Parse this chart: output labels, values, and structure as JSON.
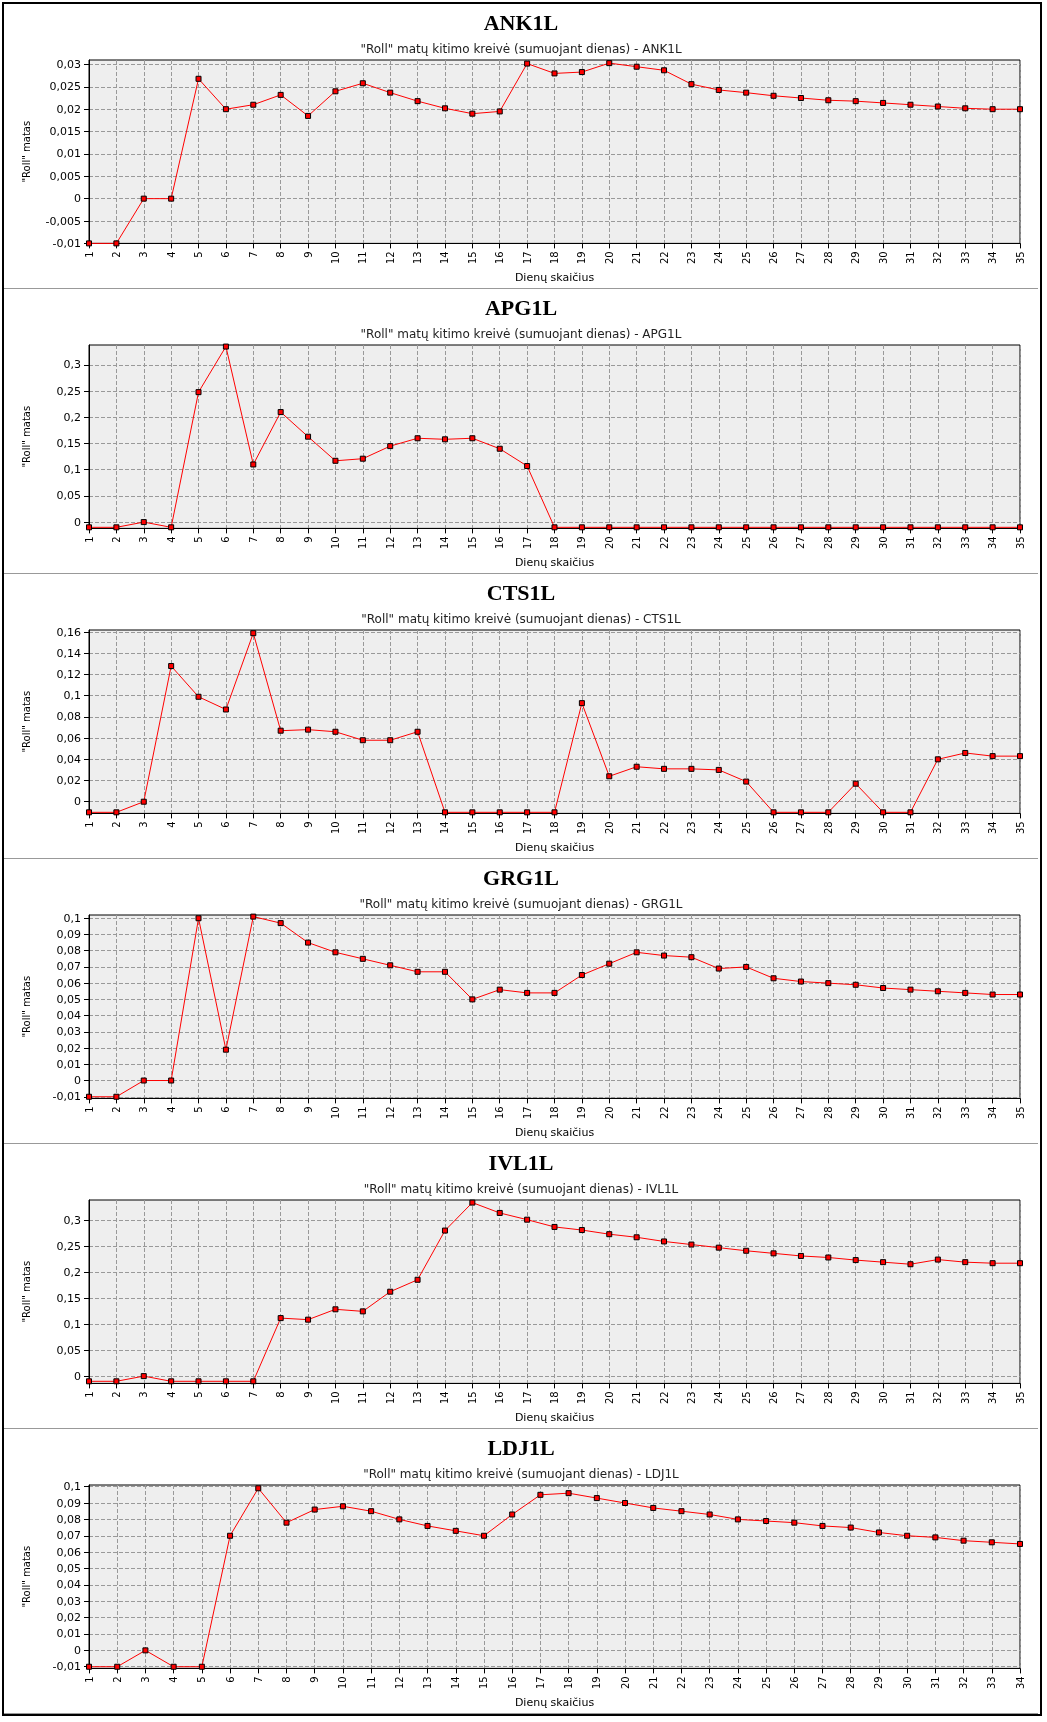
{
  "chart_data": [
    {
      "type": "line",
      "title": "ANK1L",
      "subtitle": "\"Roll\" matų kitimo kreivė (sumuojant dienas) - ANK1L",
      "xlabel": "Dienų skaičius",
      "ylabel": "\"Roll\" matas",
      "grid": true,
      "marker": "square",
      "line_style": "solid",
      "categories": [
        "1",
        "2",
        "3",
        "4",
        "5",
        "6",
        "7",
        "8",
        "9",
        "10",
        "11",
        "12",
        "13",
        "14",
        "15",
        "16",
        "17",
        "18",
        "19",
        "20",
        "21",
        "22",
        "23",
        "24",
        "25",
        "26",
        "27",
        "28",
        "29",
        "30",
        "31",
        "32",
        "33",
        "34",
        "35"
      ],
      "ylim": [
        -0.01,
        0.031
      ],
      "yticks": [
        {
          "value": -0.01,
          "label": "-0,01"
        },
        {
          "value": -0.005,
          "label": "-0,005"
        },
        {
          "value": 0,
          "label": "0"
        },
        {
          "value": 0.005,
          "label": "0,005"
        },
        {
          "value": 0.01,
          "label": "0,01"
        },
        {
          "value": 0.015,
          "label": "0,015"
        },
        {
          "value": 0.02,
          "label": "0,02"
        },
        {
          "value": 0.025,
          "label": "0,025"
        },
        {
          "value": 0.03,
          "label": "0,03"
        }
      ],
      "series": [
        {
          "color": "#ff0000",
          "values": [
            -0.01,
            -0.01,
            0,
            0,
            0.0268,
            0.02,
            0.021,
            0.0232,
            0.0185,
            0.024,
            0.0258,
            0.0237,
            0.0218,
            0.0202,
            0.019,
            0.0195,
            0.0302,
            0.028,
            0.0283,
            0.0303,
            0.0295,
            0.0287,
            0.0256,
            0.0243,
            0.0237,
            0.023,
            0.0225,
            0.022,
            0.0218,
            0.0214,
            0.021,
            0.0206,
            0.0202,
            0.02,
            0.02
          ]
        }
      ]
    },
    {
      "type": "line",
      "title": "APG1L",
      "subtitle": "\"Roll\" matų kitimo kreivė (sumuojant dienas) - APG1L",
      "xlabel": "Dienų skaičius",
      "ylabel": "\"Roll\" matas",
      "grid": true,
      "marker": "square",
      "line_style": "solid",
      "categories": [
        "1",
        "2",
        "3",
        "4",
        "5",
        "6",
        "7",
        "8",
        "9",
        "10",
        "11",
        "12",
        "13",
        "14",
        "15",
        "16",
        "17",
        "18",
        "19",
        "20",
        "21",
        "22",
        "23",
        "24",
        "25",
        "26",
        "27",
        "28",
        "29",
        "30",
        "31",
        "32",
        "33",
        "34",
        "35"
      ],
      "ylim": [
        -0.012,
        0.338
      ],
      "yticks": [
        {
          "value": 0,
          "label": "0"
        },
        {
          "value": 0.05,
          "label": "0,05"
        },
        {
          "value": 0.1,
          "label": "0,1"
        },
        {
          "value": 0.15,
          "label": "0,15"
        },
        {
          "value": 0.2,
          "label": "0,2"
        },
        {
          "value": 0.25,
          "label": "0,25"
        },
        {
          "value": 0.3,
          "label": "0,3"
        }
      ],
      "series": [
        {
          "color": "#ff0000",
          "values": [
            -0.01,
            -0.01,
            0,
            -0.01,
            0.248,
            0.335,
            0.11,
            0.21,
            0.163,
            0.117,
            0.121,
            0.145,
            0.16,
            0.158,
            0.16,
            0.14,
            0.107,
            -0.01,
            -0.01,
            -0.01,
            -0.01,
            -0.01,
            -0.01,
            -0.01,
            -0.01,
            -0.01,
            -0.01,
            -0.01,
            -0.01,
            -0.01,
            -0.01,
            -0.01,
            -0.01,
            -0.01,
            -0.01
          ]
        }
      ]
    },
    {
      "type": "line",
      "title": "CTS1L",
      "subtitle": "\"Roll\" matų kitimo kreivė (sumuojant dienas) - CTS1L",
      "xlabel": "Dienų skaičius",
      "ylabel": "\"Roll\" matas",
      "grid": true,
      "marker": "square",
      "line_style": "solid",
      "categories": [
        "1",
        "2",
        "3",
        "4",
        "5",
        "6",
        "7",
        "8",
        "9",
        "10",
        "11",
        "12",
        "13",
        "14",
        "15",
        "16",
        "17",
        "18",
        "19",
        "20",
        "21",
        "22",
        "23",
        "24",
        "25",
        "26",
        "27",
        "28",
        "29",
        "30",
        "31",
        "32",
        "33",
        "34",
        "35"
      ],
      "ylim": [
        -0.011,
        0.162
      ],
      "yticks": [
        {
          "value": 0,
          "label": "0"
        },
        {
          "value": 0.02,
          "label": "0,02"
        },
        {
          "value": 0.04,
          "label": "0,04"
        },
        {
          "value": 0.06,
          "label": "0,06"
        },
        {
          "value": 0.08,
          "label": "0,08"
        },
        {
          "value": 0.1,
          "label": "0,1"
        },
        {
          "value": 0.12,
          "label": "0,12"
        },
        {
          "value": 0.14,
          "label": "0,14"
        },
        {
          "value": 0.16,
          "label": "0,16"
        }
      ],
      "series": [
        {
          "color": "#ff0000",
          "values": [
            -0.01,
            -0.01,
            0,
            0.128,
            0.099,
            0.087,
            0.159,
            0.067,
            0.068,
            0.066,
            0.058,
            0.058,
            0.066,
            -0.01,
            -0.01,
            -0.01,
            -0.01,
            -0.01,
            0.093,
            0.024,
            0.033,
            0.031,
            0.031,
            0.03,
            0.019,
            -0.01,
            -0.01,
            -0.01,
            0.017,
            -0.01,
            -0.01,
            0.04,
            0.046,
            0.043,
            0.043
          ]
        }
      ]
    },
    {
      "type": "line",
      "title": "GRG1L",
      "subtitle": "\"Roll\" matų kitimo kreivė (sumuojant dienas) - GRG1L",
      "xlabel": "Dienų skaičius",
      "ylabel": "\"Roll\" matas",
      "grid": true,
      "marker": "square",
      "line_style": "solid",
      "categories": [
        "1",
        "2",
        "3",
        "4",
        "5",
        "6",
        "7",
        "8",
        "9",
        "10",
        "11",
        "12",
        "13",
        "14",
        "15",
        "16",
        "17",
        "18",
        "19",
        "20",
        "21",
        "22",
        "23",
        "24",
        "25",
        "26",
        "27",
        "28",
        "29",
        "30",
        "31",
        "32",
        "33",
        "34",
        "35"
      ],
      "ylim": [
        -0.011,
        0.102
      ],
      "yticks": [
        {
          "value": -0.01,
          "label": "-0,01"
        },
        {
          "value": 0,
          "label": "0"
        },
        {
          "value": 0.01,
          "label": "0,01"
        },
        {
          "value": 0.02,
          "label": "0,02"
        },
        {
          "value": 0.03,
          "label": "0,03"
        },
        {
          "value": 0.04,
          "label": "0,04"
        },
        {
          "value": 0.05,
          "label": "0,05"
        },
        {
          "value": 0.06,
          "label": "0,06"
        },
        {
          "value": 0.07,
          "label": "0,07"
        },
        {
          "value": 0.08,
          "label": "0,08"
        },
        {
          "value": 0.09,
          "label": "0,09"
        },
        {
          "value": 0.1,
          "label": "0,1"
        }
      ],
      "series": [
        {
          "color": "#ff0000",
          "values": [
            -0.01,
            -0.01,
            0,
            0,
            0.1,
            0.019,
            0.101,
            0.097,
            0.085,
            0.079,
            0.075,
            0.071,
            0.067,
            0.067,
            0.05,
            0.056,
            0.054,
            0.054,
            0.065,
            0.072,
            0.079,
            0.077,
            0.076,
            0.069,
            0.07,
            0.063,
            0.061,
            0.06,
            0.059,
            0.057,
            0.056,
            0.055,
            0.054,
            0.053,
            0.053
          ]
        }
      ]
    },
    {
      "type": "line",
      "title": "IVL1L",
      "subtitle": "\"Roll\" matų kitimo kreivė (sumuojant dienas) - IVL1L",
      "xlabel": "Dienų skaičius",
      "ylabel": "\"Roll\" matas",
      "grid": true,
      "marker": "square",
      "line_style": "solid",
      "categories": [
        "1",
        "2",
        "3",
        "4",
        "5",
        "6",
        "7",
        "8",
        "9",
        "10",
        "11",
        "12",
        "13",
        "14",
        "15",
        "16",
        "17",
        "18",
        "19",
        "20",
        "21",
        "22",
        "23",
        "24",
        "25",
        "26",
        "27",
        "28",
        "29",
        "30",
        "31",
        "32",
        "33",
        "34",
        "35"
      ],
      "ylim": [
        -0.014,
        0.34
      ],
      "yticks": [
        {
          "value": 0,
          "label": "0"
        },
        {
          "value": 0.05,
          "label": "0,05"
        },
        {
          "value": 0.1,
          "label": "0,1"
        },
        {
          "value": 0.15,
          "label": "0,15"
        },
        {
          "value": 0.2,
          "label": "0,2"
        },
        {
          "value": 0.25,
          "label": "0,25"
        },
        {
          "value": 0.3,
          "label": "0,3"
        }
      ],
      "series": [
        {
          "color": "#ff0000",
          "values": [
            -0.01,
            -0.01,
            0,
            -0.01,
            -0.01,
            -0.01,
            -0.01,
            0.112,
            0.109,
            0.129,
            0.125,
            0.163,
            0.186,
            0.281,
            0.335,
            0.315,
            0.302,
            0.288,
            0.282,
            0.274,
            0.268,
            0.26,
            0.254,
            0.248,
            0.242,
            0.237,
            0.232,
            0.229,
            0.224,
            0.22,
            0.216,
            0.225,
            0.22,
            0.218,
            0.218
          ]
        }
      ]
    },
    {
      "type": "line",
      "title": "LDJ1L",
      "subtitle": "\"Roll\" matų kitimo kreivė (sumuojant dienas) - LDJ1L",
      "xlabel": "Dienų skaičius",
      "ylabel": "\"Roll\" matas",
      "grid": true,
      "marker": "square",
      "line_style": "solid",
      "categories": [
        "1",
        "2",
        "3",
        "4",
        "5",
        "6",
        "7",
        "8",
        "9",
        "10",
        "11",
        "12",
        "13",
        "14",
        "15",
        "16",
        "17",
        "18",
        "19",
        "20",
        "21",
        "22",
        "23",
        "24",
        "25",
        "26",
        "27",
        "28",
        "29",
        "30",
        "31",
        "32",
        "33",
        "34"
      ],
      "ylim": [
        -0.011,
        0.101
      ],
      "yticks": [
        {
          "value": -0.01,
          "label": "-0,01"
        },
        {
          "value": 0,
          "label": "0"
        },
        {
          "value": 0.01,
          "label": "0,01"
        },
        {
          "value": 0.02,
          "label": "0,02"
        },
        {
          "value": 0.03,
          "label": "0,03"
        },
        {
          "value": 0.04,
          "label": "0,04"
        },
        {
          "value": 0.05,
          "label": "0,05"
        },
        {
          "value": 0.06,
          "label": "0,06"
        },
        {
          "value": 0.07,
          "label": "0,07"
        },
        {
          "value": 0.08,
          "label": "0,08"
        },
        {
          "value": 0.09,
          "label": "0,09"
        },
        {
          "value": 0.1,
          "label": "0,1"
        }
      ],
      "series": [
        {
          "color": "#ff0000",
          "values": [
            -0.01,
            -0.01,
            0,
            -0.01,
            -0.01,
            0.07,
            0.099,
            0.078,
            0.086,
            0.088,
            0.085,
            0.08,
            0.076,
            0.073,
            0.07,
            0.083,
            0.095,
            0.096,
            0.093,
            0.09,
            0.087,
            0.085,
            0.083,
            0.08,
            0.079,
            0.078,
            0.076,
            0.075,
            0.072,
            0.07,
            0.069,
            0.067,
            0.066,
            0.065
          ]
        }
      ]
    }
  ]
}
